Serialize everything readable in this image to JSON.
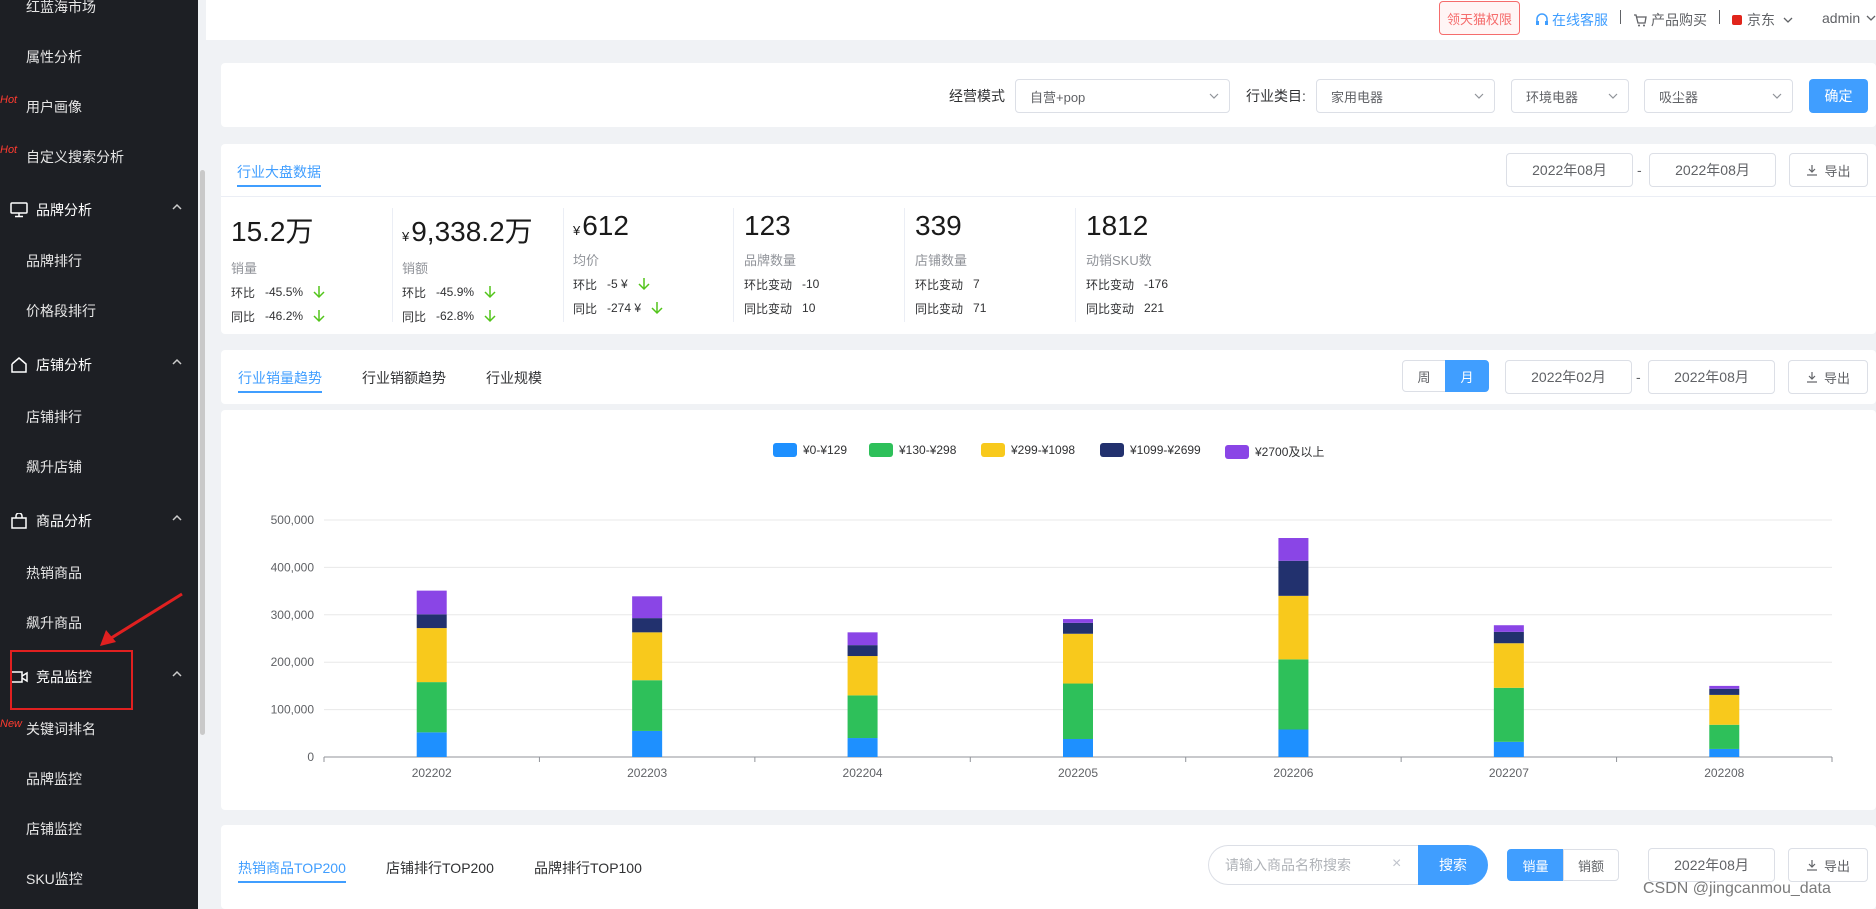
{
  "sidebar": {
    "items": [
      {
        "label": "红蓝海市场",
        "tag": ""
      },
      {
        "label": "属性分析",
        "tag": ""
      },
      {
        "label": "用户画像",
        "tag": "Hot"
      },
      {
        "label": "自定义搜索分析",
        "tag": "Hot"
      }
    ],
    "groups": [
      {
        "label": "品牌分析",
        "children": [
          "品牌排行",
          "价格段排行"
        ]
      },
      {
        "label": "店铺分析",
        "children": [
          "店铺排行",
          "飙升店铺"
        ]
      },
      {
        "label": "商品分析",
        "children": [
          "热销商品",
          "飙升商品"
        ]
      },
      {
        "label": "竞品监控",
        "children": [
          "关键词排名",
          "品牌监控",
          "店铺监控",
          "SKU监控"
        ],
        "first_child_tag": "New"
      }
    ]
  },
  "topbar": {
    "tag_label": "领天猫权限",
    "service_label": "在线客服",
    "buy_label": "产品购买",
    "platform_label": "京东",
    "user_label": "admin"
  },
  "filters": {
    "mode_label": "经营模式",
    "mode_value": "自营+pop",
    "category_label": "行业类目:",
    "category_1": "家用电器",
    "category_2": "环境电器",
    "category_3": "吸尘器",
    "confirm_label": "确定"
  },
  "overview": {
    "tab_label": "行业大盘数据",
    "date_from": "2022年08月",
    "date_to": "2022年08月",
    "range_sep": "-",
    "export_label": "导出",
    "metrics": [
      {
        "value": "15.2万",
        "yen": "",
        "label": "销量",
        "row1_k": "环比",
        "row1_v": "-45.5%",
        "row2_k": "同比",
        "row2_v": "-46.2%",
        "arrows": true
      },
      {
        "value": "9,338.2万",
        "yen": "¥",
        "label": "销额",
        "row1_k": "环比",
        "row1_v": "-45.9%",
        "row2_k": "同比",
        "row2_v": "-62.8%",
        "arrows": true
      },
      {
        "value": "612",
        "yen": "¥",
        "label": "均价",
        "row1_k": "环比",
        "row1_v": "-5 ¥",
        "row2_k": "同比",
        "row2_v": "-274 ¥",
        "arrows": true
      },
      {
        "value": "123",
        "yen": "",
        "label": "品牌数量",
        "row1_k": "环比变动",
        "row1_v": "-10",
        "row2_k": "同比变动",
        "row2_v": "10",
        "arrows": false
      },
      {
        "value": "339",
        "yen": "",
        "label": "店铺数量",
        "row1_k": "环比变动",
        "row1_v": "7",
        "row2_k": "同比变动",
        "row2_v": "71",
        "arrows": false
      },
      {
        "value": "1812",
        "yen": "",
        "label": "动销SKU数",
        "row1_k": "环比变动",
        "row1_v": "-176",
        "row2_k": "同比变动",
        "row2_v": "221",
        "arrows": false
      }
    ]
  },
  "trend": {
    "tabs": [
      "行业销量趋势",
      "行业销额趋势",
      "行业规模"
    ],
    "week_label": "周",
    "month_label": "月",
    "date_from": "2022年02月",
    "date_to": "2022年08月",
    "range_sep": "-",
    "export_label": "导出"
  },
  "chart_data": {
    "type": "bar",
    "stacked": true,
    "categories": [
      "202202",
      "202203",
      "202204",
      "202205",
      "202206",
      "202207",
      "202208"
    ],
    "series": [
      {
        "name": "¥0-¥129",
        "color": "#1e90ff",
        "values": [
          52000,
          55000,
          40000,
          38000,
          58000,
          32000,
          17000
        ]
      },
      {
        "name": "¥130-¥298",
        "color": "#2ec05a",
        "values": [
          106000,
          107000,
          90000,
          117000,
          148000,
          114000,
          51000
        ]
      },
      {
        "name": "¥299-¥1098",
        "color": "#f8c91c",
        "values": [
          114000,
          101000,
          83000,
          105000,
          134000,
          94000,
          63000
        ]
      },
      {
        "name": "¥1099-¥2699",
        "color": "#22316e",
        "values": [
          29000,
          30000,
          23000,
          23000,
          74000,
          24000,
          13000
        ]
      },
      {
        "name": "¥2700及以上",
        "color": "#8a45e6",
        "values": [
          50000,
          46000,
          27000,
          8000,
          48000,
          14000,
          6000
        ]
      }
    ],
    "y_ticks": [
      "0",
      "100,000",
      "200,000",
      "300,000",
      "400,000",
      "500,000"
    ],
    "ylim": [
      0,
      500000
    ],
    "legend_position": "top-center"
  },
  "ranking": {
    "tabs": [
      "热销商品TOP200",
      "店铺排行TOP200",
      "品牌排行TOP100"
    ],
    "search_placeholder": "请输入商品名称搜索",
    "clear_symbol": "×",
    "search_label": "搜索",
    "seg_sales": "销量",
    "seg_amount": "销额",
    "date": "2022年08月",
    "export_label": "导出"
  },
  "watermark": "CSDN @jingcanmou_data"
}
